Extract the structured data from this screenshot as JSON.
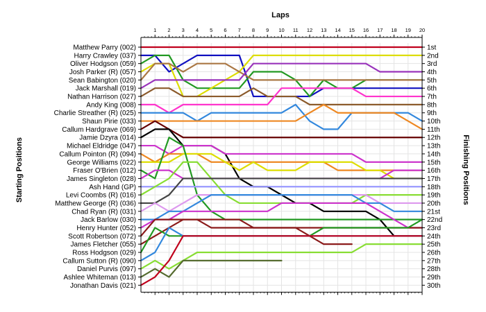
{
  "chart_data": {
    "type": "line",
    "title": "",
    "xlabel": "Laps",
    "ylabel_left": "Starting Positions",
    "ylabel_right": "Finishing Positions",
    "laps": [
      1,
      2,
      3,
      4,
      5,
      6,
      7,
      8,
      9,
      10,
      11,
      12,
      13,
      14,
      15,
      16,
      17,
      18,
      19,
      20
    ],
    "drivers": [
      "Matthew Parry (002)",
      "Harry Crawley (037)",
      "Oliver Hodgson (059)",
      "Josh Parker (R) (057)",
      "Sean Babington (020)",
      "Jack Marshall (019)",
      "Nathan Harrison (027)",
      "Andy King (008)",
      "Charlie Streather (R) (025)",
      "Shaun Pirie (033)",
      "Callum Hardgrave (069)",
      "Jamie Dzyra (014)",
      "Michael Eldridge (047)",
      "Callum Pointon (R) (094)",
      "George Williams (022)",
      "Fraser O'Brien (012)",
      "James Singleton (028)",
      "Ash Hand (GP)",
      "Levi Coombs (R) (016)",
      "Matthew George (R) (036)",
      "Chad Ryan (R) (031)",
      "Jack Barlow (030)",
      "Henry Hunter (052)",
      "Scott Robertson (072)",
      "James Fletcher (055)",
      "Ross Hodgson (029)",
      "Callum Sutton (R) (090)",
      "Daniel Purvis (097)",
      "Ashlee Whiteman (013)",
      "Jonathan Davis (021)"
    ],
    "finishing_labels": [
      "1st",
      "2nd",
      "3rd",
      "4th",
      "5th",
      "6th",
      "7th",
      "8th",
      "9th",
      "10th",
      "11th",
      "12th",
      "13th",
      "14th",
      "15th",
      "16th",
      "17th",
      "18th",
      "19th",
      "20th",
      "21st",
      "22nd",
      "23rd",
      "24th",
      "25th",
      "26th",
      "27th",
      "28th",
      "29th",
      "30th"
    ],
    "series": [
      {
        "start": 1,
        "color": "#c0001c",
        "positions": [
          1,
          1,
          1,
          1,
          1,
          1,
          1,
          1,
          1,
          1,
          1,
          1,
          1,
          1,
          1,
          1,
          1,
          1,
          1,
          1
        ]
      },
      {
        "start": 2,
        "color": "#1010c0",
        "positions": [
          2,
          4,
          3,
          2,
          2,
          2,
          2,
          7,
          7,
          7,
          7,
          7,
          6,
          6,
          6,
          6,
          6,
          6,
          6,
          6
        ]
      },
      {
        "start": 3,
        "color": "#229922",
        "positions": [
          2,
          2,
          5,
          6,
          6,
          6,
          6,
          4,
          4,
          4,
          5,
          7,
          5,
          6,
          6,
          5,
          5,
          5,
          5,
          5
        ]
      },
      {
        "start": 4,
        "color": "#dddd00",
        "positions": [
          3,
          3,
          7,
          7,
          6,
          5,
          4,
          2,
          2,
          2,
          2,
          2,
          2,
          2,
          2,
          2,
          2,
          2,
          2,
          2
        ]
      },
      {
        "start": 5,
        "color": "#aa7744",
        "positions": [
          3,
          3,
          4,
          3,
          3,
          3,
          4,
          5,
          5,
          5,
          5,
          5,
          5,
          5,
          5,
          5,
          5,
          5,
          5,
          5
        ]
      },
      {
        "start": 6,
        "color": "#9933bb",
        "positions": [
          5,
          5,
          5,
          5,
          5,
          5,
          5,
          3,
          3,
          3,
          3,
          3,
          3,
          3,
          3,
          3,
          4,
          4,
          4,
          4
        ]
      },
      {
        "start": 7,
        "color": "#8b5a2b",
        "positions": [
          6,
          6,
          7,
          7,
          7,
          7,
          7,
          6,
          7,
          7,
          7,
          8,
          8,
          8,
          8,
          8,
          8,
          8,
          8,
          8
        ]
      },
      {
        "start": 8,
        "color": "#ff33cc",
        "positions": [
          8,
          9,
          8,
          8,
          8,
          8,
          8,
          8,
          8,
          6,
          6,
          6,
          6,
          6,
          6,
          7,
          7,
          7,
          7,
          7
        ]
      },
      {
        "start": 9,
        "color": "#3388dd",
        "positions": [
          9,
          9,
          9,
          10,
          9,
          9,
          9,
          9,
          9,
          9,
          8,
          10,
          11,
          11,
          9,
          9,
          9,
          9,
          9,
          10
        ]
      },
      {
        "start": 10,
        "color": "#ee8822",
        "positions": [
          10,
          10,
          10,
          10,
          10,
          10,
          10,
          10,
          10,
          10,
          10,
          9,
          8,
          9,
          9,
          9,
          9,
          9,
          10,
          11
        ]
      },
      {
        "start": 11,
        "color": "#660000",
        "positions": [
          10,
          11,
          12,
          12,
          12,
          12,
          12,
          12,
          12,
          12,
          12,
          12,
          12,
          12,
          12,
          12,
          12,
          12,
          12,
          12
        ]
      },
      {
        "start": 12,
        "color": "#000000",
        "positions": [
          11,
          11,
          13,
          13,
          13,
          14,
          17,
          18,
          18,
          19,
          20,
          20,
          21,
          21,
          21,
          21,
          22,
          24,
          24,
          24
        ]
      },
      {
        "start": 13,
        "color": "#cc33cc",
        "positions": [
          13,
          14,
          13,
          13,
          13,
          14,
          14,
          14,
          14,
          14,
          14,
          14,
          14,
          14,
          14,
          15,
          15,
          15,
          15,
          15
        ]
      },
      {
        "start": 14,
        "color": "#ee8822",
        "positions": [
          15,
          14,
          14,
          14,
          15,
          15,
          15,
          15,
          15,
          15,
          15,
          15,
          15,
          16,
          16,
          16,
          16,
          16,
          16,
          16
        ]
      },
      {
        "start": 15,
        "color": "#dddd00",
        "positions": [
          15,
          15,
          14,
          14,
          14,
          15,
          16,
          15,
          16,
          16,
          16,
          15,
          15,
          15,
          15,
          16,
          16,
          17,
          17,
          17
        ]
      },
      {
        "start": 16,
        "color": "#229922",
        "positions": [
          17,
          12,
          13,
          19,
          21,
          22,
          22,
          22,
          22,
          22,
          22,
          22,
          22,
          22,
          22,
          22,
          22,
          22,
          22,
          22
        ]
      },
      {
        "start": 17,
        "color": "#cc33cc",
        "positions": [
          16,
          16,
          17,
          17,
          17,
          17,
          17,
          17,
          17,
          17,
          17,
          17,
          17,
          17,
          17,
          17,
          17,
          16,
          16,
          16
        ]
      },
      {
        "start": 18,
        "color": "#9999ff",
        "positions": [
          18,
          18,
          18,
          18,
          18,
          18,
          18,
          18,
          18,
          18,
          18,
          18,
          18,
          18,
          18,
          18,
          18,
          18,
          18,
          18
        ]
      },
      {
        "start": 19,
        "color": "#88dd33",
        "positions": [
          18,
          17,
          15,
          15,
          17,
          19,
          20,
          20,
          20,
          20,
          20,
          20,
          20,
          20,
          20,
          19,
          19,
          19,
          19,
          19
        ]
      },
      {
        "start": 20,
        "color": "#444444",
        "positions": [
          20,
          19,
          17,
          17,
          17,
          17,
          17,
          17,
          17,
          17,
          17,
          17,
          17,
          17,
          17,
          17,
          17,
          17,
          17,
          17
        ]
      },
      {
        "start": 21,
        "color": "#dd99ee",
        "positions": [
          20,
          21,
          20,
          19,
          19,
          19,
          19,
          19,
          19,
          19,
          19,
          19,
          19,
          19,
          19,
          19,
          20,
          20,
          20,
          20
        ]
      },
      {
        "start": 22,
        "color": "#3388dd",
        "positions": [
          22,
          21,
          21,
          20,
          19,
          19,
          19,
          19,
          19,
          19,
          19,
          19,
          19,
          19,
          19,
          20,
          20,
          21,
          21,
          21
        ]
      },
      {
        "start": 23,
        "color": "#cc33cc",
        "positions": [
          22,
          22,
          21,
          21,
          21,
          21,
          21,
          21,
          21,
          20,
          20,
          20,
          20,
          20,
          20,
          20,
          21,
          22,
          23,
          23
        ]
      },
      {
        "start": 24,
        "color": "#8b1a1a",
        "positions": [
          22,
          22,
          22,
          22,
          22,
          22,
          22,
          23,
          23,
          23,
          23,
          23,
          23,
          23,
          23,
          23,
          23,
          23,
          23,
          23
        ]
      },
      {
        "start": 25,
        "color": "#8b1a1a",
        "positions": [
          24,
          23,
          22,
          22,
          23,
          23,
          23,
          23,
          23,
          23,
          23,
          24,
          25,
          25,
          25
        ]
      },
      {
        "start": 26,
        "color": "#229922",
        "positions": [
          23,
          24,
          24,
          24,
          24,
          24,
          24,
          24,
          24,
          24,
          24,
          24,
          23,
          23,
          23,
          23,
          23,
          23,
          23,
          22
        ]
      },
      {
        "start": 27,
        "color": "#3388dd",
        "positions": [
          26,
          23,
          24,
          24,
          24,
          24,
          24,
          24,
          24,
          24,
          24,
          24,
          24,
          24,
          24,
          24,
          24,
          24,
          24,
          24
        ]
      },
      {
        "start": 28,
        "color": "#88dd33",
        "positions": [
          27,
          28,
          27,
          26,
          26,
          26,
          26,
          26,
          26,
          26,
          26,
          26,
          26,
          26,
          26,
          25,
          25,
          25,
          25,
          25
        ]
      },
      {
        "start": 29,
        "color": "#556b2f",
        "positions": [
          28,
          29,
          27,
          27,
          27,
          27,
          27,
          27,
          27,
          27
        ]
      },
      {
        "start": 30,
        "color": "#c0001c",
        "positions": [
          29,
          27,
          24,
          24,
          24,
          24,
          24,
          24,
          24,
          24,
          24,
          24,
          24,
          24,
          24,
          24,
          24,
          24,
          24,
          24
        ]
      }
    ]
  }
}
